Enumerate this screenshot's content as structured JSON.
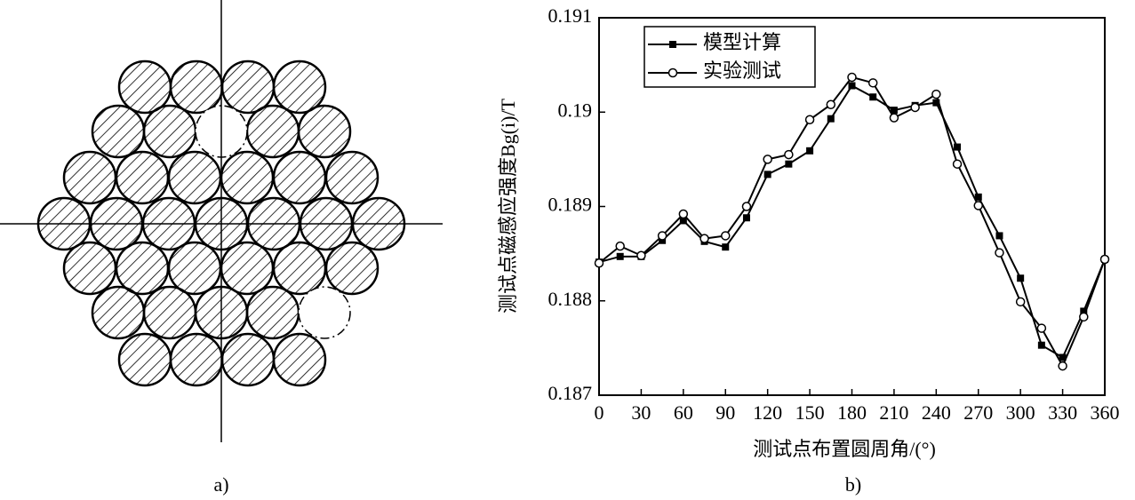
{
  "diagram": {
    "panel_label": "a)"
  },
  "chart_data": {
    "type": "line",
    "panel_label": "b)",
    "x_label": "测试点布置圆周角/(°)",
    "y_label": "测试点磁感应强度Bg(i)/T",
    "x": [
      0,
      15,
      30,
      45,
      60,
      75,
      90,
      105,
      120,
      135,
      150,
      165,
      180,
      195,
      210,
      225,
      240,
      255,
      270,
      285,
      300,
      315,
      330,
      345,
      360
    ],
    "series": [
      {
        "name": "模型计算",
        "color": "#000000",
        "marker": "square",
        "values": [
          0.18841,
          0.18847,
          0.18847,
          0.18864,
          0.18885,
          0.18863,
          0.18857,
          0.18888,
          0.18934,
          0.18945,
          0.18959,
          0.18993,
          0.19028,
          0.19016,
          0.19002,
          0.19007,
          0.1901,
          0.18963,
          0.1891,
          0.18869,
          0.18824,
          0.18753,
          0.1874,
          0.18789,
          0.18844
        ]
      },
      {
        "name": "实验测试",
        "color": "#000000",
        "marker": "circle",
        "values": [
          0.1884,
          0.18858,
          0.18848,
          0.18869,
          0.18892,
          0.18866,
          0.18869,
          0.189,
          0.1895,
          0.18955,
          0.18992,
          0.19008,
          0.19037,
          0.19031,
          0.18994,
          0.19005,
          0.19019,
          0.18945,
          0.18901,
          0.18851,
          0.18799,
          0.18771,
          0.18731,
          0.18783,
          0.18844
        ]
      }
    ],
    "xlim": [
      0,
      360
    ],
    "xticks": [
      0,
      30,
      60,
      90,
      120,
      150,
      180,
      210,
      240,
      270,
      300,
      330,
      360
    ],
    "ylim": [
      0.187,
      0.191
    ],
    "yticks": [
      0.187,
      0.188,
      0.189,
      0.19,
      {
        "value": 0.191,
        "label": "0.191"
      }
    ],
    "legend": "upper-left",
    "grid": false
  }
}
